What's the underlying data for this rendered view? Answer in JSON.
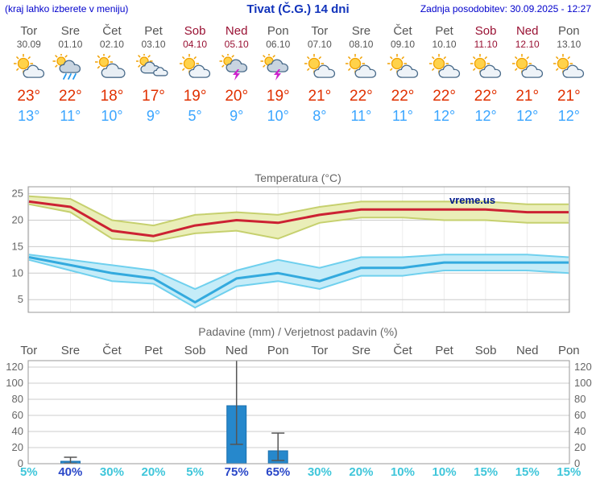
{
  "header": {
    "left_note": "(kraj lahko izberete v meniju)",
    "title": "Tivat (Č.G.) 14 dni",
    "updated": "Zadnja posodobitev: 30.09.2025 - 12:27"
  },
  "colors": {
    "accent_blue": "#0000cc",
    "title_blue": "#1133bb",
    "weekday_gray": "#555555",
    "weekend_red": "#991133",
    "high_temp_red": "#e03000",
    "low_temp_blue": "#3aa5ff",
    "prob_cyan": "#3fc6da",
    "prob_highlight_blue": "#2947c8",
    "chart_text_gray": "#666666",
    "watermark_navy": "#001a8c"
  },
  "days": [
    {
      "name": "Tor",
      "date": "30.09",
      "icon": "sun-cloud",
      "weekend": false,
      "high": "23°",
      "low": "13°"
    },
    {
      "name": "Sre",
      "date": "01.10",
      "icon": "rain-sun",
      "weekend": false,
      "high": "22°",
      "low": "11°"
    },
    {
      "name": "Čet",
      "date": "02.10",
      "icon": "cloud-sun",
      "weekend": false,
      "high": "18°",
      "low": "10°"
    },
    {
      "name": "Pet",
      "date": "03.10",
      "icon": "cloudy",
      "weekend": false,
      "high": "17°",
      "low": "9°"
    },
    {
      "name": "Sob",
      "date": "04.10",
      "icon": "sun-cloud",
      "weekend": true,
      "high": "19°",
      "low": "5°"
    },
    {
      "name": "Ned",
      "date": "05.10",
      "icon": "storm",
      "weekend": true,
      "high": "20°",
      "low": "9°"
    },
    {
      "name": "Pon",
      "date": "06.10",
      "icon": "storm",
      "weekend": false,
      "high": "19°",
      "low": "10°"
    },
    {
      "name": "Tor",
      "date": "07.10",
      "icon": "sun-cloud",
      "weekend": false,
      "high": "21°",
      "low": "8°"
    },
    {
      "name": "Sre",
      "date": "08.10",
      "icon": "sun-cloud",
      "weekend": false,
      "high": "22°",
      "low": "11°"
    },
    {
      "name": "Čet",
      "date": "09.10",
      "icon": "sun-cloud",
      "weekend": false,
      "high": "22°",
      "low": "11°"
    },
    {
      "name": "Pet",
      "date": "10.10",
      "icon": "sun-cloud",
      "weekend": false,
      "high": "22°",
      "low": "12°"
    },
    {
      "name": "Sob",
      "date": "11.10",
      "icon": "sun-cloud",
      "weekend": true,
      "high": "22°",
      "low": "12°"
    },
    {
      "name": "Ned",
      "date": "12.10",
      "icon": "sun-cloud",
      "weekend": true,
      "high": "21°",
      "low": "12°"
    },
    {
      "name": "Pon",
      "date": "13.10",
      "icon": "sun-cloud",
      "weekend": false,
      "high": "21°",
      "low": "12°"
    }
  ],
  "chart_data": [
    {
      "type": "line",
      "title": "Temperatura (°C)",
      "watermark": "vreme.us",
      "categories": [
        "Tor",
        "Sre",
        "Čet",
        "Pet",
        "Sob",
        "Ned",
        "Pon",
        "Tor",
        "Sre",
        "Čet",
        "Pet",
        "Sob",
        "Ned",
        "Pon"
      ],
      "yticks": [
        5,
        10,
        15,
        20,
        25
      ],
      "ylim": [
        2.6,
        26.3
      ],
      "grid": true,
      "series": [
        {
          "name": "max-temp",
          "color": "#cc2233",
          "band_fill": "#eaeeb8",
          "band_edge": "#c6d06e",
          "values": [
            23.5,
            22.5,
            18,
            17,
            19,
            20,
            19.5,
            21,
            22,
            22,
            22,
            22,
            21.5,
            21.5
          ],
          "upper": [
            24.5,
            24,
            20,
            19,
            21,
            21.5,
            21,
            22.5,
            23.5,
            23.5,
            23.5,
            23.5,
            23,
            23
          ],
          "lower": [
            23,
            21.5,
            16.5,
            16,
            17.5,
            18,
            16.5,
            19.5,
            20.5,
            20.5,
            20,
            20,
            19.5,
            19.5
          ]
        },
        {
          "name": "min-temp",
          "color": "#33aade",
          "band_fill": "#c5ecf8",
          "band_edge": "#6fd0ee",
          "values": [
            13,
            11.5,
            10,
            9,
            4.5,
            9,
            10,
            8.5,
            11,
            11,
            12,
            12,
            12,
            12
          ],
          "upper": [
            13.5,
            12.5,
            11.5,
            10.5,
            7,
            10.5,
            12.5,
            11,
            13,
            13,
            13.5,
            13.5,
            13.5,
            13
          ],
          "lower": [
            12.5,
            10.5,
            8.5,
            8,
            3.5,
            7.5,
            8.5,
            7,
            9.5,
            9.5,
            10.5,
            10.5,
            10.5,
            10
          ]
        }
      ]
    },
    {
      "type": "bar",
      "title": "Padavine (mm) / Verjetnost padavin (%)",
      "categories": [
        "Tor",
        "Sre",
        "Čet",
        "Pet",
        "Sob",
        "Ned",
        "Pon",
        "Tor",
        "Sre",
        "Čet",
        "Pet",
        "Sob",
        "Ned",
        "Pon"
      ],
      "yticks": [
        0,
        20,
        40,
        60,
        80,
        100,
        120
      ],
      "ylim": [
        0,
        128
      ],
      "bar_color": "#2688cc",
      "bar_edge": "#1a6fae",
      "values": [
        0,
        3,
        0,
        0,
        0,
        72,
        16,
        0,
        0,
        0,
        0,
        0,
        0,
        0
      ],
      "whisker_low": [
        null,
        0.5,
        null,
        null,
        null,
        24,
        4,
        null,
        null,
        null,
        null,
        null,
        null,
        null
      ],
      "whisker_high": [
        null,
        8,
        null,
        null,
        null,
        128,
        38,
        null,
        null,
        null,
        null,
        null,
        null,
        null
      ],
      "probabilities": [
        "5%",
        "40%",
        "30%",
        "20%",
        "5%",
        "75%",
        "65%",
        "30%",
        "20%",
        "10%",
        "10%",
        "15%",
        "15%",
        "15%"
      ],
      "prob_highlight": [
        false,
        true,
        false,
        false,
        false,
        true,
        true,
        false,
        false,
        false,
        false,
        false,
        false,
        false
      ]
    }
  ]
}
